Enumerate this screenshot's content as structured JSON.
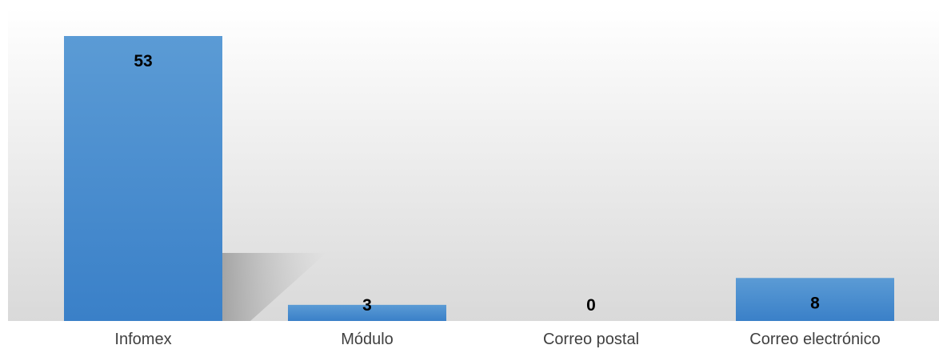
{
  "chart_data": {
    "type": "bar",
    "title": "",
    "xlabel": "",
    "ylabel": "",
    "categories": [
      "Infomex",
      "Módulo",
      "Correo postal",
      "Correo electrónico"
    ],
    "values": [
      53,
      3,
      0,
      8
    ],
    "data_labels": [
      "53",
      "3",
      "0",
      "8"
    ],
    "ylim": [
      0,
      53
    ],
    "grid": false,
    "legend": "none",
    "colors": {
      "bar_top": "#5b9bd5",
      "bar_bottom": "#3a80c8",
      "plot_bg_top": "#ffffff",
      "plot_bg_bottom": "#d9d9d9",
      "label": "#000000",
      "tick_label": "#404040"
    }
  }
}
